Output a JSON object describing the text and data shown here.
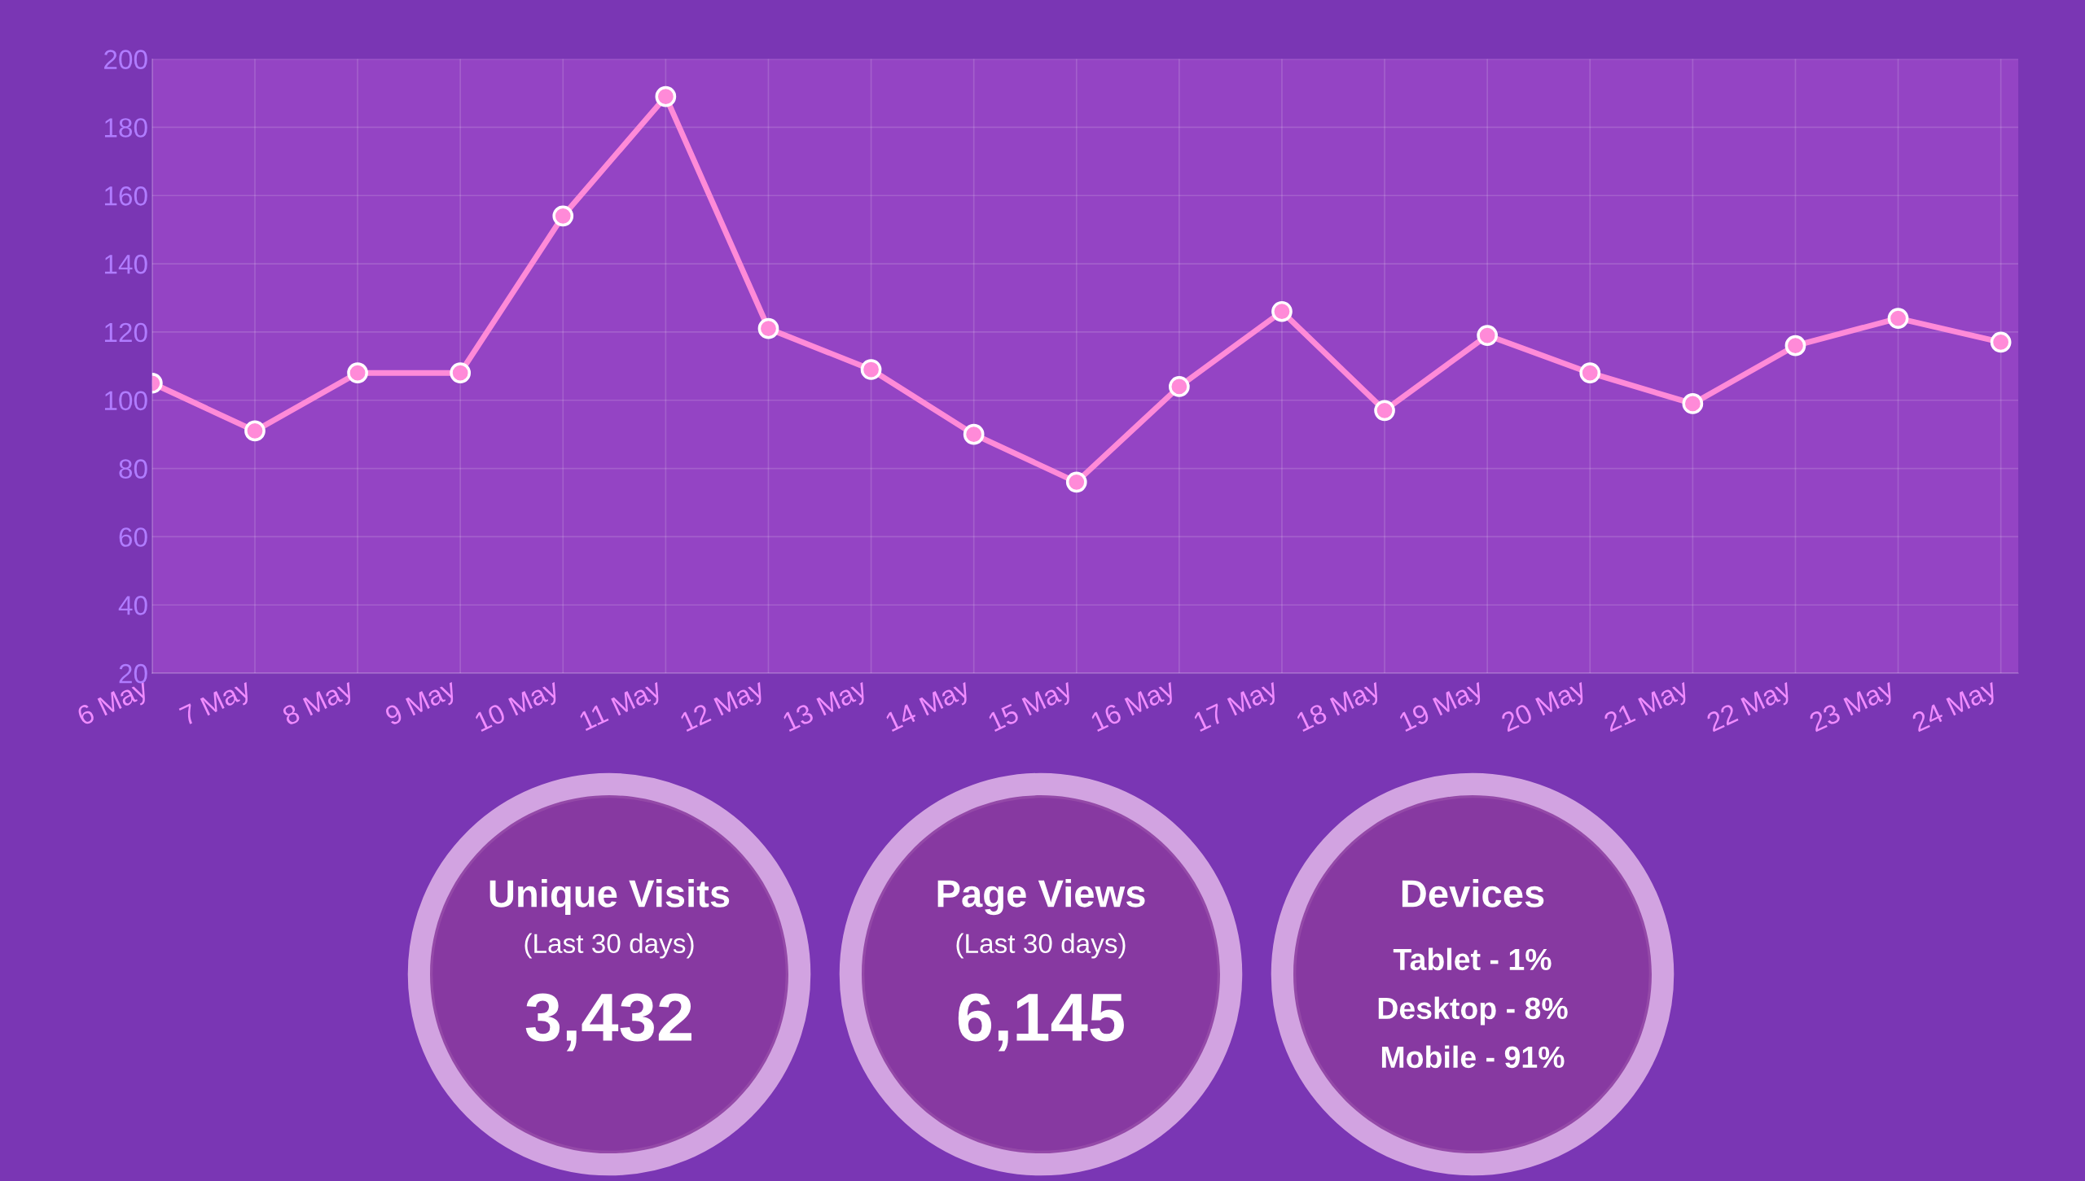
{
  "chart_data": {
    "type": "line",
    "categories": [
      "6 May",
      "7 May",
      "8 May",
      "9 May",
      "10 May",
      "11 May",
      "12 May",
      "13 May",
      "14 May",
      "15 May",
      "16 May",
      "17 May",
      "18 May",
      "19 May",
      "20 May",
      "21 May",
      "22 May",
      "23 May",
      "24 May"
    ],
    "series": [
      {
        "color": "#ff8ad8",
        "values": [
          105,
          91,
          108,
          108,
          154,
          189,
          121,
          109,
          90,
          76,
          104,
          126,
          97,
          119,
          108,
          99,
          116,
          124,
          117
        ]
      }
    ],
    "ylim": [
      20,
      200
    ],
    "yticks": [
      20,
      40,
      60,
      80,
      100,
      120,
      140,
      160,
      180,
      200
    ],
    "grid": true,
    "marker": "circle",
    "line_style": "solid",
    "annotations": [
      "Unique Visits",
      "(Last 30 days)",
      "3,432",
      "Page Views",
      "(Last 30 days)",
      "6,145",
      "Devices",
      "Tablet - 1%",
      "Desktop - 8%",
      "Mobile - 91%"
    ]
  }
}
